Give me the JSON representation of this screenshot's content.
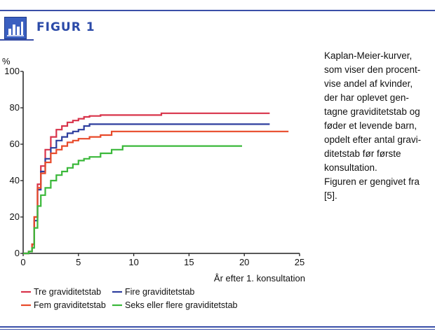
{
  "figure": {
    "label": "FIGUR 1"
  },
  "caption": {
    "lines": [
      "Kaplan-Meier-kurver,",
      "som viser den procent-",
      "vise andel af kvinder,",
      "der har oplevet gen-",
      "tagne graviditetstab og",
      "føder et levende barn,",
      "opdelt efter antal gravi-",
      "ditetstab før første",
      "konsultation."
    ],
    "source_lines": [
      "Figuren er gengivet fra",
      "[5]."
    ]
  },
  "colors": {
    "brand": "#3a4fa8",
    "accent": "#2b4aa8"
  },
  "chart_data": {
    "type": "line",
    "title": "",
    "xlabel": "År efter 1. konsultation",
    "ylabel": "%",
    "xlim": [
      0,
      25
    ],
    "ylim": [
      0,
      100
    ],
    "xticks": [
      0,
      5,
      10,
      15,
      20,
      25
    ],
    "yticks": [
      0,
      20,
      40,
      60,
      80,
      100
    ],
    "legend_position": "bottom-left",
    "grid": false,
    "series": [
      {
        "name": "Tre graviditetstab",
        "color": "#d8334a",
        "x": [
          0,
          0.5,
          0.8,
          1,
          1.3,
          1.6,
          2,
          2.5,
          3,
          3.5,
          4,
          4.5,
          5,
          5.5,
          6,
          7,
          8,
          9,
          10,
          11,
          12.5,
          15,
          18,
          20,
          22.3
        ],
        "y": [
          0,
          1,
          5,
          20,
          38,
          48,
          57,
          64,
          68,
          70,
          72,
          73,
          74,
          75,
          75.5,
          76,
          76,
          76,
          76,
          76,
          77,
          77,
          77,
          77,
          77
        ]
      },
      {
        "name": "Fire graviditetstab",
        "color": "#2e3e9e",
        "x": [
          0,
          0.5,
          0.8,
          1,
          1.3,
          1.6,
          2,
          2.5,
          3,
          3.5,
          4,
          4.5,
          5,
          5.5,
          6,
          7,
          8,
          9,
          10,
          15,
          20,
          22.3
        ],
        "y": [
          0,
          1,
          5,
          18,
          35,
          45,
          52,
          58,
          62,
          64,
          66,
          67,
          68,
          70,
          71,
          71,
          71,
          71,
          71,
          71,
          71,
          71
        ]
      },
      {
        "name": "Fem graviditetstab",
        "color": "#e84a2a",
        "x": [
          0,
          0.5,
          0.8,
          1,
          1.3,
          1.6,
          2,
          2.5,
          3,
          3.5,
          4,
          4.5,
          5,
          6,
          7,
          8,
          9,
          10,
          15,
          20,
          24
        ],
        "y": [
          0,
          1,
          5,
          20,
          36,
          44,
          50,
          55,
          57,
          59,
          61,
          62,
          63,
          64,
          65,
          67,
          67,
          67,
          67,
          67,
          67
        ]
      },
      {
        "name": "Seks eller flere graviditetstab",
        "color": "#3ab83a",
        "x": [
          0,
          0.5,
          0.8,
          1,
          1.3,
          1.6,
          2,
          2.5,
          3,
          3.5,
          4,
          4.5,
          5,
          5.5,
          6,
          7,
          8,
          9,
          10,
          12,
          15,
          18,
          19.8
        ],
        "y": [
          0,
          1,
          3,
          14,
          26,
          32,
          36,
          40,
          43,
          45,
          47,
          49,
          51,
          52,
          53,
          55,
          57,
          59,
          59,
          59,
          59,
          59,
          59
        ]
      }
    ]
  }
}
